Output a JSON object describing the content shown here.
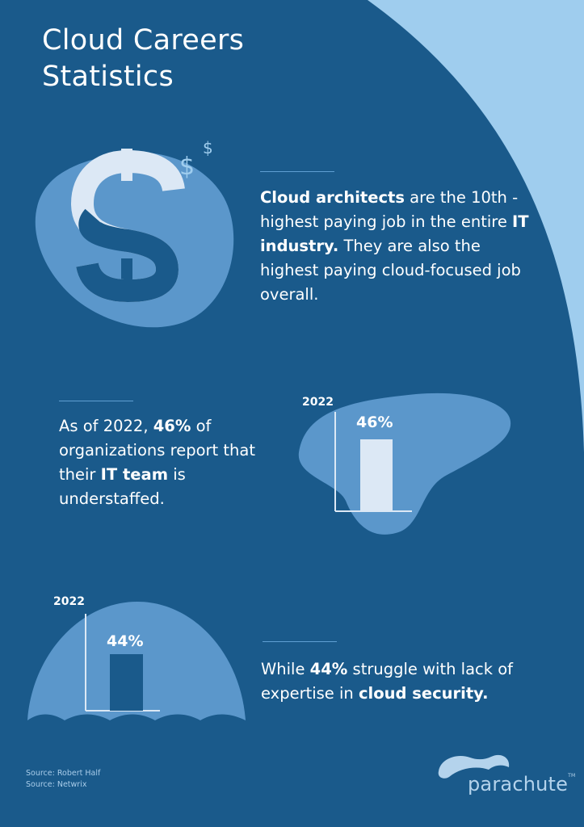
{
  "title": {
    "line1": "Cloud Careers",
    "line2": "Statistics"
  },
  "colors": {
    "background": "#1a5a8b",
    "light_blob": "#5b97cb",
    "pale_bar": "#dce8f5",
    "corner_sky": "#9fcdee",
    "rule": "#5f9fd2"
  },
  "icons": {
    "money": "dollar-sign-icon",
    "sparkle": "dollar-sign-icon",
    "logo": "parachute-icon"
  },
  "stat1": {
    "b1": "Cloud architects",
    "t1": " are the 10th -highest paying job in the entire ",
    "b2": "IT industry.",
    "t2": " They are also the highest paying cloud-focused job overall."
  },
  "stat2": {
    "t1": "As of 2022, ",
    "b1": "46%",
    "t2": " of organizations report that their ",
    "b2": "IT team",
    "t3": " is understaffed."
  },
  "stat3": {
    "t1": "While ",
    "b1": "44%",
    "t2": " struggle with lack of expertise in ",
    "b2": "cloud security."
  },
  "chart1": {
    "year": "2022",
    "value_label": "46%",
    "value": 46
  },
  "chart2": {
    "year": "2022",
    "value_label": "44%",
    "value": 44
  },
  "sources": [
    "Source: Robert Half",
    "Source: Netwrix"
  ],
  "logo": {
    "text": "parachute",
    "tm": "TM"
  }
}
